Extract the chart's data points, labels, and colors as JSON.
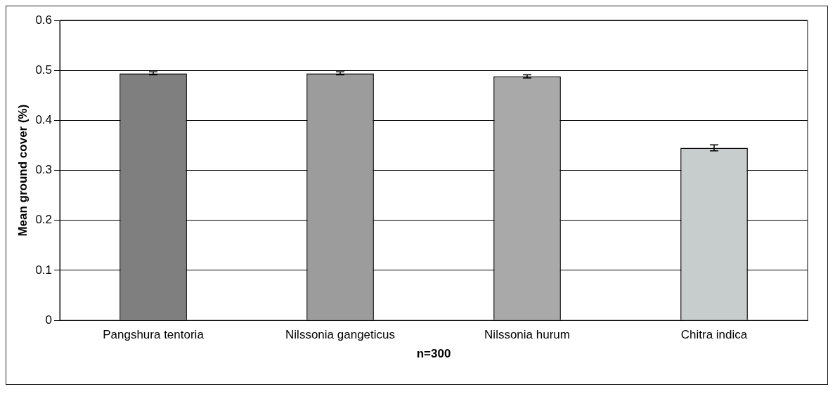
{
  "chart_data": {
    "type": "bar",
    "xlabel": "n=300",
    "ylabel": "Mean ground cover (%)",
    "categories": [
      "Pangshura tentoria",
      "Nilssonia gangeticus",
      "Nilssonia hurum",
      "Chitra indica"
    ],
    "values": [
      0.494,
      0.494,
      0.488,
      0.345
    ],
    "errors": [
      0.003,
      0.003,
      0.003,
      0.006
    ],
    "colors": [
      "#7f7f7f",
      "#9c9c9c",
      "#a9a9a9",
      "#c6cdcc"
    ],
    "ylim": [
      0,
      0.6
    ],
    "yticks": [
      0,
      0.1,
      0.2,
      0.3,
      0.4,
      0.5,
      0.6
    ],
    "grid": "y",
    "legend": false
  }
}
